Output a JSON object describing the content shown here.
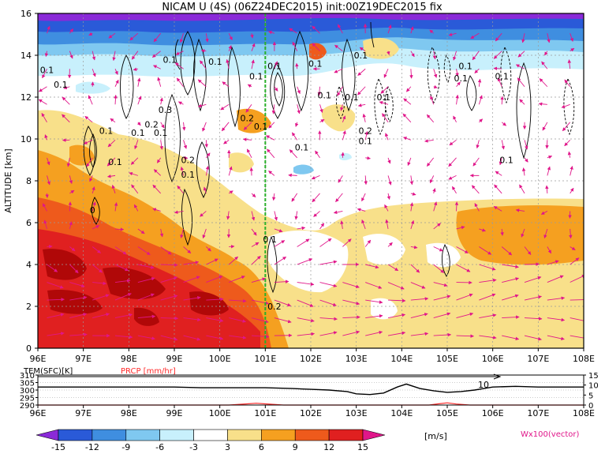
{
  "title": "NICAM U (4S) (06Z24DEC2015) init:00Z19DEC2015 fix",
  "colors": {
    "pos": [
      "#f8e08a",
      "#f5a020",
      "#ee5a1c",
      "#e02020",
      "#b00808"
    ],
    "neg": [
      "#c8f0fc",
      "#7fc8f0",
      "#3f8ee0",
      "#2a5ad8",
      "#8a2ad8"
    ],
    "vector": "#e0168a",
    "precip": "#ff2a2a",
    "marker": "#2ab02a"
  },
  "chart_data": [
    {
      "type": "heatmap",
      "title": "NICAM U (4S) (06Z24DEC2015) init:00Z19DEC2015 fix",
      "ylabel": "ALTITUDE [km]",
      "xlabel": "",
      "xlim": [
        96,
        108
      ],
      "ylim": [
        0,
        16
      ],
      "xticks": [
        "96E",
        "97E",
        "98E",
        "99E",
        "100E",
        "101E",
        "102E",
        "103E",
        "104E",
        "105E",
        "106E",
        "107E",
        "108E"
      ],
      "yticks": [
        "0",
        "2",
        "4",
        "6",
        "8",
        "10",
        "12",
        "14",
        "16"
      ],
      "grid": true,
      "marker_lon": 101,
      "contour_labels": [
        {
          "text": "0.1",
          "x": 96.2,
          "y": 13.3
        },
        {
          "text": "0.1",
          "x": 96.5,
          "y": 12.6
        },
        {
          "text": "0.1",
          "x": 98.9,
          "y": 13.8
        },
        {
          "text": "0.1",
          "x": 99.9,
          "y": 13.7
        },
        {
          "text": "0.1",
          "x": 100.8,
          "y": 13.0
        },
        {
          "text": "0.1",
          "x": 101.2,
          "y": 13.5
        },
        {
          "text": "0.1",
          "x": 102.1,
          "y": 13.6
        },
        {
          "text": "0.1",
          "x": 103.1,
          "y": 14.0
        },
        {
          "text": "0.3",
          "x": 98.8,
          "y": 11.4
        },
        {
          "text": "0.2",
          "x": 98.5,
          "y": 10.7
        },
        {
          "text": "0.1",
          "x": 98.2,
          "y": 10.3
        },
        {
          "text": "0.1",
          "x": 98.7,
          "y": 10.3
        },
        {
          "text": "0.1",
          "x": 97.5,
          "y": 10.4
        },
        {
          "text": "0.2",
          "x": 100.6,
          "y": 11.0
        },
        {
          "text": "0.1",
          "x": 100.9,
          "y": 10.6
        },
        {
          "text": "0.1",
          "x": 102.3,
          "y": 12.1
        },
        {
          "text": "0.1",
          "x": 102.9,
          "y": 12.0
        },
        {
          "text": "0.2",
          "x": 103.2,
          "y": 10.4
        },
        {
          "text": "0.1",
          "x": 103.2,
          "y": 9.9
        },
        {
          "text": "0.1",
          "x": 101.8,
          "y": 9.6
        },
        {
          "text": "0.1",
          "x": 103.6,
          "y": 12.0
        },
        {
          "text": "0.1",
          "x": 105.3,
          "y": 12.9
        },
        {
          "text": "0.1",
          "x": 105.4,
          "y": 13.5
        },
        {
          "text": "0.1",
          "x": 106.2,
          "y": 13.0
        },
        {
          "text": "0.1",
          "x": 106.3,
          "y": 9.0
        },
        {
          "text": "0.1",
          "x": 97.7,
          "y": 8.9
        },
        {
          "text": "0.2",
          "x": 99.3,
          "y": 9.0
        },
        {
          "text": "0.1",
          "x": 99.3,
          "y": 8.3
        },
        {
          "text": "0",
          "x": 97.2,
          "y": 6.6
        },
        {
          "text": "0.1",
          "x": 101.1,
          "y": 5.2
        },
        {
          "text": "0.2",
          "x": 101.2,
          "y": 2.0
        }
      ]
    },
    {
      "type": "line",
      "series": [
        {
          "name": "TEM(SFC)[K]",
          "x": [
            96,
            96.6,
            97,
            97.6,
            98,
            98.6,
            99,
            99.6,
            100,
            100.6,
            101,
            101.6,
            102,
            102.4,
            102.8,
            103,
            103.3,
            103.6,
            103.9,
            104.1,
            104.4,
            104.7,
            105,
            105.3,
            105.6,
            106,
            106.5,
            107,
            107.5,
            108
          ],
          "y": [
            302,
            302,
            302,
            302,
            302,
            302,
            302,
            301.5,
            301.5,
            301.5,
            301.5,
            301,
            300.5,
            300,
            299,
            297.5,
            297,
            298,
            302,
            304,
            301,
            299.5,
            298.5,
            299,
            300,
            302,
            302.5,
            302,
            302,
            302
          ]
        },
        {
          "name": "PRCP [mm/hr]",
          "x": [
            96,
            100.2,
            100.6,
            100.8,
            101,
            101.4,
            102,
            104.6,
            104.8,
            105,
            105.2,
            105.5,
            108
          ],
          "y": [
            0,
            0,
            0.6,
            0.9,
            0.6,
            0,
            0,
            0,
            0.6,
            1.1,
            0.5,
            0,
            0
          ]
        }
      ],
      "left_axis": {
        "label": "TEM(SFC)[K]",
        "ticks": [
          "290",
          "295",
          "300",
          "305",
          "310"
        ],
        "range": [
          290,
          310
        ]
      },
      "right_axis": {
        "label": "PRCP [mm/hr]",
        "ticks": [
          "0",
          "5",
          "10",
          "15"
        ],
        "range": [
          0,
          15
        ]
      },
      "annotation": "10"
    }
  ],
  "colorbar": {
    "values": [
      "-15",
      "-12",
      "-9",
      "-6",
      "-3",
      "3",
      "6",
      "9",
      "12",
      "15"
    ],
    "unit": "[m/s]",
    "vector_label": "Wx100(vector)"
  }
}
